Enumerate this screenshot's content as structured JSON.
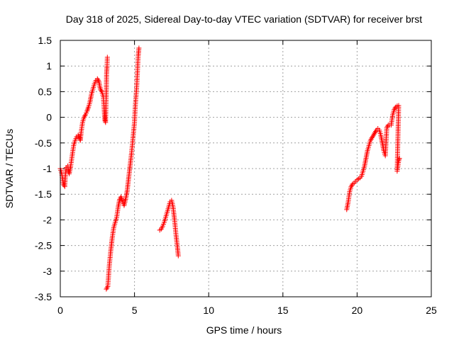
{
  "chart_data": {
    "type": "scatter",
    "title": "Day 318 of 2025, Sidereal Day-to-day VTEC variation (SDTVAR) for receiver brst",
    "xlabel": "GPS time / hours",
    "ylabel": "SDTVAR / TECUs",
    "xlim": [
      0,
      25
    ],
    "ylim": [
      -3.5,
      1.5
    ],
    "xticks": [
      0,
      5,
      10,
      15,
      20,
      25
    ],
    "yticks": [
      -3.5,
      -3,
      -2.5,
      -2,
      -1.5,
      -1,
      -0.5,
      0,
      0.5,
      1,
      1.5
    ],
    "xtick_labels": [
      "0",
      "5",
      "10",
      "15",
      "20",
      "25"
    ],
    "ytick_labels": [
      "-3.5",
      "-3",
      "-2.5",
      "-2",
      "-1.5",
      "-1",
      "-0.5",
      "0",
      "0.5",
      "1",
      "1.5"
    ],
    "grid": true,
    "marker": "+",
    "color": "#ff0000",
    "series": [
      {
        "name": "SDTVAR",
        "segments": [
          [
            [
              0.0,
              -1.0
            ],
            [
              0.1,
              -1.1
            ],
            [
              0.2,
              -1.3
            ],
            [
              0.3,
              -1.35
            ],
            [
              0.35,
              -1.1
            ],
            [
              0.4,
              -0.98
            ],
            [
              0.5,
              -0.95
            ],
            [
              0.55,
              -1.05
            ],
            [
              0.6,
              -1.1
            ],
            [
              0.7,
              -0.95
            ],
            [
              0.8,
              -0.75
            ],
            [
              0.9,
              -0.55
            ],
            [
              1.0,
              -0.45
            ],
            [
              1.1,
              -0.38
            ],
            [
              1.2,
              -0.35
            ],
            [
              1.3,
              -0.4
            ],
            [
              1.35,
              -0.45
            ],
            [
              1.4,
              -0.3
            ],
            [
              1.5,
              -0.1
            ],
            [
              1.6,
              0.0
            ],
            [
              1.7,
              0.05
            ],
            [
              1.8,
              0.12
            ],
            [
              1.9,
              0.2
            ],
            [
              2.0,
              0.3
            ],
            [
              2.1,
              0.45
            ],
            [
              2.2,
              0.55
            ],
            [
              2.3,
              0.65
            ],
            [
              2.4,
              0.72
            ],
            [
              2.5,
              0.75
            ],
            [
              2.6,
              0.7
            ],
            [
              2.7,
              0.55
            ],
            [
              2.8,
              0.5
            ],
            [
              2.9,
              0.4
            ],
            [
              2.95,
              0.2
            ],
            [
              3.0,
              -0.05
            ],
            [
              3.05,
              -0.1
            ],
            [
              3.1,
              0.5
            ],
            [
              3.12,
              0.85
            ],
            [
              3.15,
              1.0
            ],
            [
              3.17,
              1.17
            ]
          ],
          [
            [
              3.1,
              -3.35
            ],
            [
              3.2,
              -3.3
            ],
            [
              3.3,
              -2.9
            ],
            [
              3.4,
              -2.6
            ],
            [
              3.5,
              -2.35
            ],
            [
              3.6,
              -2.15
            ],
            [
              3.7,
              -2.05
            ],
            [
              3.8,
              -1.95
            ],
            [
              3.9,
              -1.75
            ],
            [
              4.0,
              -1.6
            ],
            [
              4.1,
              -1.55
            ],
            [
              4.2,
              -1.65
            ],
            [
              4.3,
              -1.72
            ],
            [
              4.4,
              -1.6
            ],
            [
              4.5,
              -1.45
            ],
            [
              4.6,
              -1.2
            ],
            [
              4.7,
              -0.95
            ],
            [
              4.8,
              -0.7
            ],
            [
              4.9,
              -0.4
            ],
            [
              5.0,
              -0.1
            ],
            [
              5.05,
              0.2
            ],
            [
              5.1,
              0.4
            ],
            [
              5.15,
              0.6
            ],
            [
              5.2,
              0.9
            ],
            [
              5.25,
              1.2
            ],
            [
              5.3,
              1.35
            ]
          ],
          [
            [
              6.7,
              -2.2
            ],
            [
              6.8,
              -2.18
            ],
            [
              6.9,
              -2.12
            ],
            [
              7.0,
              -2.05
            ],
            [
              7.1,
              -1.95
            ],
            [
              7.2,
              -1.85
            ],
            [
              7.3,
              -1.75
            ],
            [
              7.4,
              -1.65
            ],
            [
              7.5,
              -1.62
            ],
            [
              7.6,
              -1.75
            ],
            [
              7.7,
              -2.0
            ],
            [
              7.8,
              -2.3
            ],
            [
              7.9,
              -2.55
            ],
            [
              7.95,
              -2.7
            ]
          ],
          [
            [
              19.3,
              -1.8
            ],
            [
              19.4,
              -1.65
            ],
            [
              19.5,
              -1.45
            ],
            [
              19.6,
              -1.35
            ],
            [
              19.7,
              -1.3
            ],
            [
              19.8,
              -1.28
            ],
            [
              19.9,
              -1.25
            ],
            [
              20.0,
              -1.22
            ],
            [
              20.1,
              -1.2
            ],
            [
              20.2,
              -1.18
            ],
            [
              20.3,
              -1.15
            ],
            [
              20.4,
              -1.05
            ],
            [
              20.5,
              -0.95
            ],
            [
              20.6,
              -0.8
            ],
            [
              20.7,
              -0.65
            ],
            [
              20.8,
              -0.55
            ],
            [
              20.9,
              -0.45
            ],
            [
              21.0,
              -0.4
            ],
            [
              21.1,
              -0.35
            ],
            [
              21.2,
              -0.3
            ],
            [
              21.3,
              -0.25
            ],
            [
              21.4,
              -0.22
            ],
            [
              21.5,
              -0.25
            ],
            [
              21.6,
              -0.35
            ],
            [
              21.7,
              -0.5
            ],
            [
              21.8,
              -0.65
            ],
            [
              21.9,
              -0.75
            ],
            [
              22.0,
              -0.2
            ],
            [
              22.1,
              -0.15
            ],
            [
              22.2,
              -0.15
            ],
            [
              22.3,
              -0.15
            ],
            [
              22.4,
              0.05
            ],
            [
              22.5,
              0.15
            ],
            [
              22.6,
              0.2
            ],
            [
              22.7,
              0.22
            ],
            [
              22.8,
              0.23
            ],
            [
              22.7,
              -1.05
            ],
            [
              22.75,
              -0.95
            ],
            [
              22.8,
              -0.85
            ],
            [
              22.85,
              -0.8
            ]
          ]
        ]
      }
    ]
  }
}
